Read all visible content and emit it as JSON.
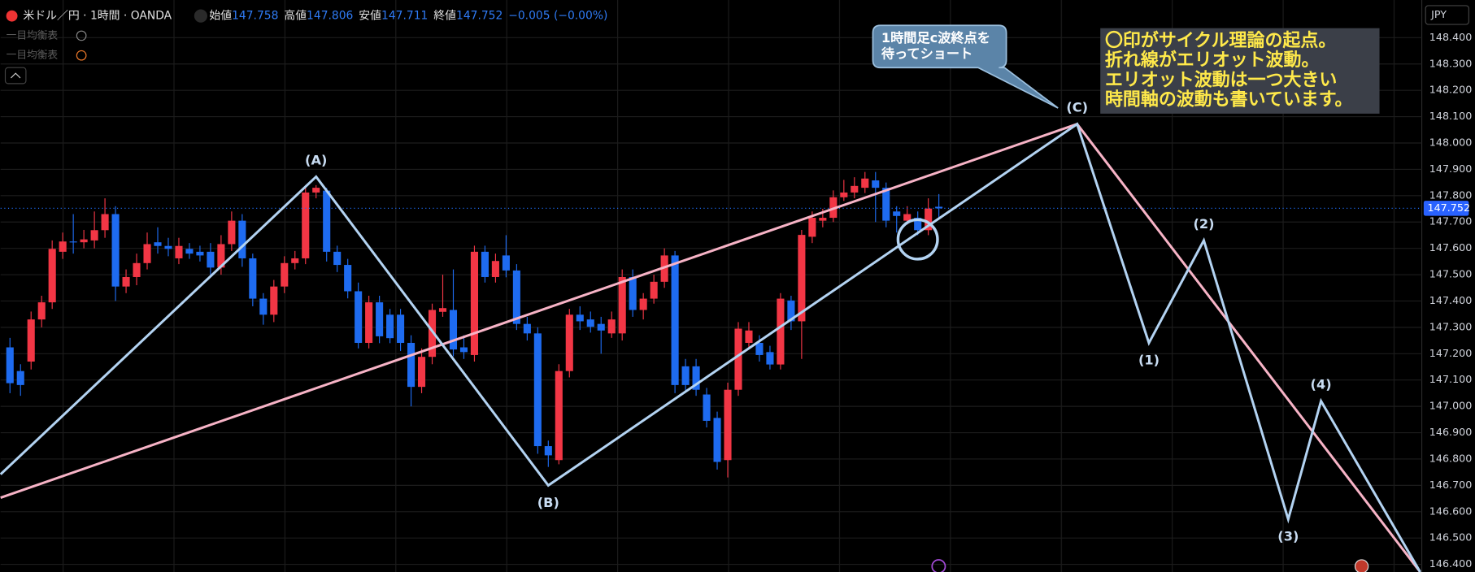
{
  "ui": {
    "symbol": "米ドル／円 · 1時間 · OANDA",
    "ohlc_labels": [
      "始値",
      "高値",
      "安値",
      "終値"
    ],
    "change": "−0.005 (−0.00%)",
    "indicators": [
      "一目均衡表",
      "一目均衡表"
    ],
    "currency": "JPY"
  },
  "annotations": {
    "callout": [
      "1時間足c波終点を",
      "待ってショート"
    ],
    "note": [
      "〇印がサイクル理論の起点。",
      "折れ線がエリオット波動。",
      "エリオット波動は一つ大きい",
      "時間軸の波動も書いています。"
    ]
  },
  "chart_data": {
    "type": "candlestick",
    "up_color": "#f23645",
    "down_color": "#1e6bf0",
    "grid": true,
    "ylim": [
      146.371,
      148.543
    ],
    "xlim": [
      -0.89,
      133.75
    ],
    "yticks": [
      {
        "value": 146.4,
        "label": "146.400"
      },
      {
        "value": 146.5,
        "label": "146.500"
      },
      {
        "value": 146.6,
        "label": "146.600"
      },
      {
        "value": 146.7,
        "label": "146.700"
      },
      {
        "value": 146.8,
        "label": "146.800"
      },
      {
        "value": 146.9,
        "label": "146.900"
      },
      {
        "value": 147,
        "label": "147.000"
      },
      {
        "value": 147.1,
        "label": "147.100"
      },
      {
        "value": 147.2,
        "label": "147.200"
      },
      {
        "value": 147.3,
        "label": "147.300"
      },
      {
        "value": 147.4,
        "label": "147.400"
      },
      {
        "value": 147.5,
        "label": "147.500"
      },
      {
        "value": 147.6,
        "label": "147.600"
      },
      {
        "value": 147.7,
        "label": "147.700"
      },
      {
        "value": 147.8,
        "label": "147.800"
      },
      {
        "value": 147.9,
        "label": "147.900"
      },
      {
        "value": 148,
        "label": "148.000"
      },
      {
        "value": 148.1,
        "label": "148.100"
      },
      {
        "value": 148.2,
        "label": "148.200"
      },
      {
        "value": 148.3,
        "label": "148.300"
      },
      {
        "value": 148.4,
        "label": "148.400"
      }
    ],
    "candles": [
      {
        "open": 147.224,
        "high": 147.26,
        "low": 147.05,
        "close": 147.088
      },
      {
        "open": 147.134,
        "high": 147.16,
        "low": 147.04,
        "close": 147.081
      },
      {
        "open": 147.17,
        "high": 147.36,
        "low": 147.14,
        "close": 147.33
      },
      {
        "open": 147.33,
        "high": 147.42,
        "low": 147.3,
        "close": 147.395
      },
      {
        "open": 147.395,
        "high": 147.63,
        "low": 147.37,
        "close": 147.598
      },
      {
        "open": 147.587,
        "high": 147.66,
        "low": 147.56,
        "close": 147.626
      },
      {
        "open": 147.626,
        "high": 147.73,
        "low": 147.58,
        "close": 147.623
      },
      {
        "open": 147.623,
        "high": 147.67,
        "low": 147.6,
        "close": 147.634
      },
      {
        "open": 147.63,
        "high": 147.74,
        "low": 147.6,
        "close": 147.669
      },
      {
        "open": 147.669,
        "high": 147.79,
        "low": 147.64,
        "close": 147.73
      },
      {
        "open": 147.73,
        "high": 147.76,
        "low": 147.4,
        "close": 147.455
      },
      {
        "open": 147.455,
        "high": 147.52,
        "low": 147.43,
        "close": 147.491
      },
      {
        "open": 147.491,
        "high": 147.58,
        "low": 147.46,
        "close": 147.544
      },
      {
        "open": 147.544,
        "high": 147.66,
        "low": 147.52,
        "close": 147.616
      },
      {
        "open": 147.623,
        "high": 147.68,
        "low": 147.58,
        "close": 147.609
      },
      {
        "open": 147.609,
        "high": 147.64,
        "low": 147.57,
        "close": 147.598
      },
      {
        "open": 147.562,
        "high": 147.64,
        "low": 147.54,
        "close": 147.609
      },
      {
        "open": 147.598,
        "high": 147.62,
        "low": 147.56,
        "close": 147.58
      },
      {
        "open": 147.587,
        "high": 147.61,
        "low": 147.55,
        "close": 147.573
      },
      {
        "open": 147.587,
        "high": 147.62,
        "low": 147.5,
        "close": 147.527
      },
      {
        "open": 147.527,
        "high": 147.65,
        "low": 147.5,
        "close": 147.616
      },
      {
        "open": 147.616,
        "high": 147.74,
        "low": 147.59,
        "close": 147.705
      },
      {
        "open": 147.705,
        "high": 147.73,
        "low": 147.53,
        "close": 147.562
      },
      {
        "open": 147.562,
        "high": 147.58,
        "low": 147.38,
        "close": 147.409
      },
      {
        "open": 147.409,
        "high": 147.43,
        "low": 147.31,
        "close": 147.348
      },
      {
        "open": 147.348,
        "high": 147.48,
        "low": 147.32,
        "close": 147.455
      },
      {
        "open": 147.455,
        "high": 147.57,
        "low": 147.43,
        "close": 147.544
      },
      {
        "open": 147.544,
        "high": 147.59,
        "low": 147.52,
        "close": 147.562
      },
      {
        "open": 147.562,
        "high": 147.84,
        "low": 147.54,
        "close": 147.812
      },
      {
        "open": 147.812,
        "high": 147.84,
        "low": 147.79,
        "close": 147.83
      },
      {
        "open": 147.819,
        "high": 147.83,
        "low": 147.55,
        "close": 147.587
      },
      {
        "open": 147.587,
        "high": 147.61,
        "low": 147.51,
        "close": 147.537
      },
      {
        "open": 147.537,
        "high": 147.56,
        "low": 147.41,
        "close": 147.437
      },
      {
        "open": 147.437,
        "high": 147.47,
        "low": 147.22,
        "close": 147.241
      },
      {
        "open": 147.241,
        "high": 147.42,
        "low": 147.22,
        "close": 147.395
      },
      {
        "open": 147.395,
        "high": 147.42,
        "low": 147.24,
        "close": 147.266
      },
      {
        "open": 147.348,
        "high": 147.37,
        "low": 147.24,
        "close": 147.259
      },
      {
        "open": 147.348,
        "high": 147.37,
        "low": 147.21,
        "close": 147.241
      },
      {
        "open": 147.241,
        "high": 147.27,
        "low": 147.0,
        "close": 147.074
      },
      {
        "open": 147.074,
        "high": 147.22,
        "low": 147.05,
        "close": 147.188
      },
      {
        "open": 147.188,
        "high": 147.39,
        "low": 147.16,
        "close": 147.366
      },
      {
        "open": 147.359,
        "high": 147.5,
        "low": 147.34,
        "close": 147.373
      },
      {
        "open": 147.366,
        "high": 147.52,
        "low": 147.19,
        "close": 147.216
      },
      {
        "open": 147.224,
        "high": 147.27,
        "low": 147.18,
        "close": 147.206
      },
      {
        "open": 147.195,
        "high": 147.61,
        "low": 147.17,
        "close": 147.587
      },
      {
        "open": 147.587,
        "high": 147.61,
        "low": 147.47,
        "close": 147.491
      },
      {
        "open": 147.491,
        "high": 147.58,
        "low": 147.47,
        "close": 147.552
      },
      {
        "open": 147.573,
        "high": 147.65,
        "low": 147.49,
        "close": 147.516
      },
      {
        "open": 147.516,
        "high": 147.54,
        "low": 147.29,
        "close": 147.313
      },
      {
        "open": 147.313,
        "high": 147.34,
        "low": 147.25,
        "close": 147.277
      },
      {
        "open": 147.277,
        "high": 147.3,
        "low": 146.82,
        "close": 146.849
      },
      {
        "open": 146.849,
        "high": 146.87,
        "low": 146.77,
        "close": 146.814
      },
      {
        "open": 146.796,
        "high": 147.16,
        "low": 146.78,
        "close": 147.134
      },
      {
        "open": 147.134,
        "high": 147.37,
        "low": 147.11,
        "close": 147.348
      },
      {
        "open": 147.348,
        "high": 147.38,
        "low": 147.29,
        "close": 147.323
      },
      {
        "open": 147.33,
        "high": 147.36,
        "low": 147.28,
        "close": 147.302
      },
      {
        "open": 147.313,
        "high": 147.34,
        "low": 147.2,
        "close": 147.288
      },
      {
        "open": 147.277,
        "high": 147.36,
        "low": 147.26,
        "close": 147.33
      },
      {
        "open": 147.277,
        "high": 147.52,
        "low": 147.25,
        "close": 147.491
      },
      {
        "open": 147.491,
        "high": 147.52,
        "low": 147.34,
        "close": 147.366
      },
      {
        "open": 147.366,
        "high": 147.43,
        "low": 147.33,
        "close": 147.409
      },
      {
        "open": 147.409,
        "high": 147.5,
        "low": 147.39,
        "close": 147.473
      },
      {
        "open": 147.473,
        "high": 147.6,
        "low": 147.45,
        "close": 147.573
      },
      {
        "open": 147.573,
        "high": 147.59,
        "low": 147.05,
        "close": 147.081
      },
      {
        "open": 147.152,
        "high": 147.18,
        "low": 147.06,
        "close": 147.081
      },
      {
        "open": 147.152,
        "high": 147.18,
        "low": 147.04,
        "close": 147.063
      },
      {
        "open": 147.045,
        "high": 147.07,
        "low": 146.92,
        "close": 146.945
      },
      {
        "open": 146.956,
        "high": 146.98,
        "low": 146.76,
        "close": 146.789
      },
      {
        "open": 146.796,
        "high": 147.09,
        "low": 146.73,
        "close": 147.063
      },
      {
        "open": 147.063,
        "high": 147.32,
        "low": 147.04,
        "close": 147.295
      },
      {
        "open": 147.241,
        "high": 147.32,
        "low": 147.22,
        "close": 147.288
      },
      {
        "open": 147.241,
        "high": 147.27,
        "low": 147.17,
        "close": 147.195
      },
      {
        "open": 147.206,
        "high": 147.23,
        "low": 147.14,
        "close": 147.159
      },
      {
        "open": 147.159,
        "high": 147.43,
        "low": 147.14,
        "close": 147.409
      },
      {
        "open": 147.402,
        "high": 147.42,
        "low": 147.29,
        "close": 147.323
      },
      {
        "open": 147.323,
        "high": 147.67,
        "low": 147.18,
        "close": 147.651
      },
      {
        "open": 147.644,
        "high": 147.74,
        "low": 147.62,
        "close": 147.716
      },
      {
        "open": 147.705,
        "high": 147.75,
        "low": 147.68,
        "close": 147.716
      },
      {
        "open": 147.716,
        "high": 147.82,
        "low": 147.7,
        "close": 147.794
      },
      {
        "open": 147.794,
        "high": 147.86,
        "low": 147.78,
        "close": 147.812
      },
      {
        "open": 147.812,
        "high": 147.87,
        "low": 147.79,
        "close": 147.837
      },
      {
        "open": 147.83,
        "high": 147.89,
        "low": 147.81,
        "close": 147.865
      },
      {
        "open": 147.858,
        "high": 147.89,
        "low": 147.7,
        "close": 147.83
      },
      {
        "open": 147.83,
        "high": 147.85,
        "low": 147.68,
        "close": 147.705
      },
      {
        "open": 147.74,
        "high": 147.76,
        "low": 147.66,
        "close": 147.723
      },
      {
        "open": 147.705,
        "high": 147.76,
        "low": 147.69,
        "close": 147.73
      },
      {
        "open": 147.716,
        "high": 147.74,
        "low": 147.65,
        "close": 147.669
      },
      {
        "open": 147.669,
        "high": 147.79,
        "low": 147.65,
        "close": 147.751
      },
      {
        "open": 147.758,
        "high": 147.806,
        "low": 147.711,
        "close": 147.752
      }
    ],
    "drawings": [
      {
        "color": "#f7b3c6",
        "points": [
          {
            "x": -0.89,
            "y": 146.653
          },
          {
            "x": 101.1,
            "y": 148.072
          },
          {
            "x": 133.6,
            "y": 146.371
          }
        ]
      },
      {
        "color": "#b3d3f2",
        "points": [
          {
            "x": -0.89,
            "y": 146.742
          },
          {
            "x": 29.0,
            "y": 147.872,
            "label": "(A)"
          },
          {
            "x": 51.0,
            "y": 146.7,
            "label": "(B)"
          },
          {
            "x": 101.1,
            "y": 148.072,
            "label": "(C)"
          },
          {
            "x": 107.9,
            "y": 147.241,
            "label": "(1)"
          },
          {
            "x": 113.1,
            "y": 147.63,
            "label": "(2)"
          },
          {
            "x": 121.1,
            "y": 146.571,
            "label": "(3)"
          },
          {
            "x": 124.2,
            "y": 147.02,
            "label": "(4)"
          },
          {
            "x": 133.6,
            "y": 146.371
          }
        ]
      }
    ],
    "cycle_marker": {
      "x": 86.0,
      "y": 147.634
    }
  }
}
